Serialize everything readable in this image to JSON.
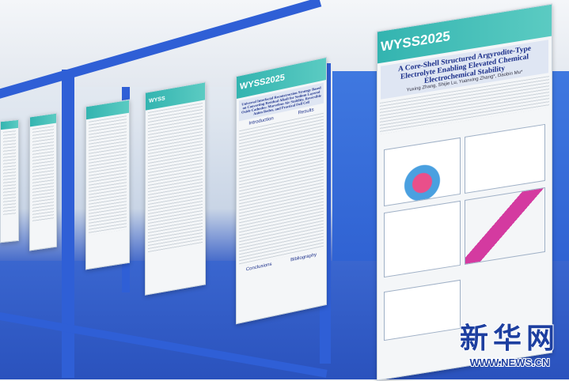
{
  "posters": [
    {
      "brand": "WYSS2025",
      "title": "Universal Interfacial Reconstruction Strategy Based on Converting Residual Alkali for Sodium Layered Oxide Cathodes: Marvelous Air Stability, Reversible Anion Redox, and Practical Full Cell",
      "sections": [
        "Introduction",
        "Results",
        "Conclusions",
        "Bibliography"
      ]
    },
    {
      "brand": "WYSS2025",
      "title": "A Core-Shell Structured Argyrodite-Type Electrolyte Enabling Elevated Chemical Electrochemical Stability",
      "authors": "Yuxing Zhang, Shijie Lu, Yuanxing Zhang*, Daobin Mu*"
    }
  ],
  "watermark": {
    "name": "新华网",
    "url": "WWW.NEWS.CN"
  },
  "colors": {
    "frame": "#2f5fd6",
    "poster_header": "#33b4b0",
    "watermark": "#1d3fa0"
  }
}
